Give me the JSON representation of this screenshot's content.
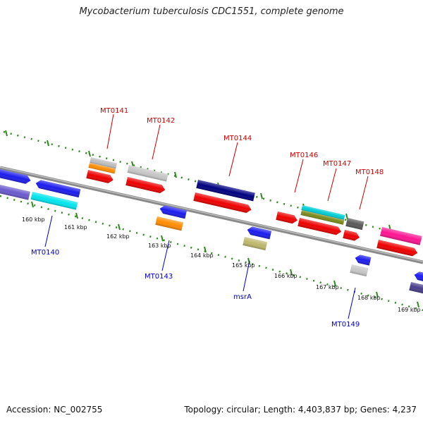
{
  "title": "Mycobacterium tuberculosis CDC1551, complete genome",
  "footer": {
    "accession": "Accession: NC_002755",
    "summary": "Topology: circular; Length: 4,403,837 bp; Genes: 4,237"
  },
  "ticks": [
    "160 kbp",
    "161 kbp",
    "162 kbp",
    "163 kbp",
    "164 kbp",
    "165 kbp",
    "166 kbp",
    "167 kbp",
    "168 kbp",
    "169 kbp"
  ],
  "labels_top": [
    "MT0141",
    "MT0142",
    "MT0144",
    "MT0146",
    "MT0147",
    "MT0148"
  ],
  "labels_bottom": [
    "MT0140",
    "MT0143",
    "msrA",
    "MT0149"
  ],
  "colors": {
    "label_top": "#cc0000",
    "label_bottom": "#0000cc",
    "backbone": "#8a8a8a",
    "dots": "#2a8a1a"
  }
}
